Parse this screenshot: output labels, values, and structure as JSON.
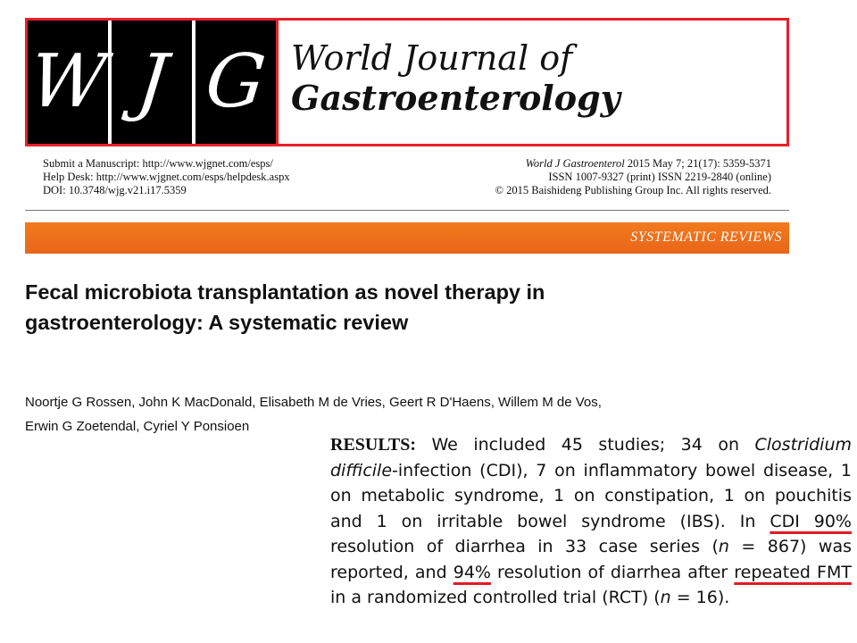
{
  "masthead": {
    "logo_letters": [
      "W",
      "J",
      "G"
    ],
    "title_line1": "World Journal of",
    "title_line2": "Gastroenterology",
    "border_color": "#e8202a"
  },
  "meta_left": {
    "submit": "Submit a Manuscript: http://www.wjgnet.com/esps/",
    "help": "Help Desk: http://www.wjgnet.com/esps/helpdesk.aspx",
    "doi": "DOI: 10.3748/wjg.v21.i17.5359"
  },
  "meta_right": {
    "journal_abbrev": "World J Gastroenterol",
    "citation": " 2015 May 7; 21(17): 5359-5371",
    "issn": "ISSN 1007-9327 (print)  ISSN 2219-2840 (online)",
    "copyright": "© 2015 Baishideng Publishing Group Inc. All rights reserved."
  },
  "section": {
    "label": "SYSTEMATIC REVIEWS",
    "color": "#ee7020"
  },
  "article": {
    "title_line1": "Fecal microbiota transplantation as novel therapy in",
    "title_line2": "gastroenterology: A systematic review",
    "authors_line1": "Noortje G Rossen, John K MacDonald, Elisabeth M de Vries, Geert R D'Haens, Willem M de Vos,",
    "authors_line2": "Erwin G Zoetendal, Cyriel Y Ponsioen"
  },
  "results": {
    "label": "RESULTS:",
    "t1": " We included 45 studies; 34 on ",
    "clostridium": "Clostridium",
    "t2": " ",
    "difficile": "difficile",
    "t3": "-infection (CDI), 7 on inflammatory bowel disease, 1 on metabolic syndrome, 1 on constipation, 1 on pouchitis and 1 on irritable bowel syndrome (IBS). In ",
    "hl1": "CDI 90%",
    "t4": " resolution of diarrhea in 33 case series (",
    "n1": "n",
    "t5": " = 867) was reported, and ",
    "hl2": "94%",
    "t6": " resolution of diarrhea after ",
    "hl3": "repeated FMT",
    "t7": " in a randomized controlled trial (RCT) (",
    "n2": "n",
    "t8": " = 16).",
    "highlight_color": "#e01b24"
  }
}
